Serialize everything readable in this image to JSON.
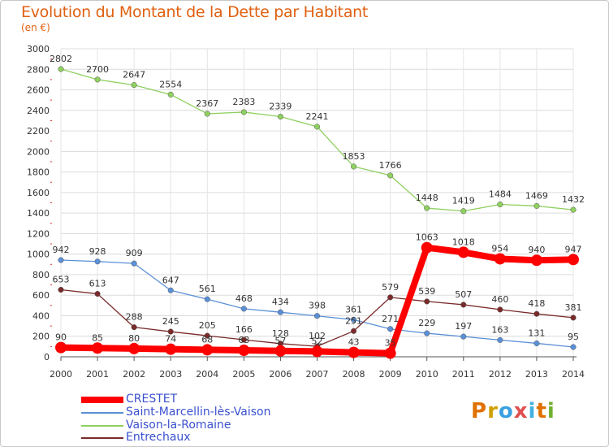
{
  "title": "Evolution du Montant de la Dette par Habitant",
  "subtitle": "(en €)",
  "logo_text": "Proxiti",
  "logo_colors": [
    "#e07000",
    "#d0a000",
    "#3aa0e0",
    "#e05050",
    "#40b0e0",
    "#e07000",
    "#70b030"
  ],
  "chart_data": {
    "type": "line",
    "title": "Evolution du Montant de la Dette par Habitant",
    "subtitle": "(en €)",
    "x": [
      "2000",
      "2001",
      "2002",
      "2003",
      "2004",
      "2005",
      "2006",
      "2007",
      "2008",
      "2009",
      "2010",
      "2011",
      "2012",
      "2013",
      "2014"
    ],
    "ylim": [
      0,
      3000
    ],
    "yticks": [
      0,
      200,
      400,
      600,
      800,
      1000,
      1200,
      1400,
      1600,
      1800,
      2000,
      2200,
      2400,
      2600,
      2800,
      3000
    ],
    "grid": true,
    "legend_position": "bottom-left",
    "series": [
      {
        "name": "CRESTET",
        "color": "#ff0000",
        "width": 8,
        "values": [
          90,
          85,
          80,
          74,
          68,
          63,
          57,
          52,
          43,
          35,
          1063,
          1018,
          954,
          940,
          947
        ],
        "labels": [
          "90",
          "85",
          "80",
          "74",
          "68",
          "63",
          "57",
          "52",
          "43",
          "35",
          "1063",
          "1018",
          "954",
          "940",
          "947"
        ]
      },
      {
        "name": "Saint-Marcellin-lès-Vaison",
        "color": "#5a90d8",
        "width": 1.3,
        "values": [
          942,
          928,
          909,
          647,
          561,
          468,
          434,
          398,
          361,
          271,
          229,
          197,
          163,
          131,
          95
        ],
        "labels": [
          "942",
          "928",
          "909",
          "647",
          "561",
          "468",
          "434",
          "398",
          "361",
          "271",
          "229",
          "197",
          "163",
          "131",
          "95"
        ]
      },
      {
        "name": "Vaison-la-Romaine",
        "color": "#8fd060",
        "width": 1.3,
        "values": [
          2802,
          2700,
          2647,
          2554,
          2367,
          2383,
          2339,
          2241,
          1853,
          1766,
          1448,
          1419,
          1484,
          1469,
          1432
        ],
        "labels": [
          "2802",
          "2700",
          "2647",
          "2554",
          "2367",
          "2383",
          "2339",
          "2241",
          "1853",
          "1766",
          "1448",
          "1419",
          "1484",
          "1469",
          "1432"
        ]
      },
      {
        "name": "Entrechaux",
        "color": "#7a2a2a",
        "width": 1.3,
        "values": [
          653,
          613,
          288,
          245,
          205,
          166,
          128,
          102,
          251,
          579,
          539,
          507,
          460,
          418,
          381
        ],
        "labels": [
          "653",
          "613",
          "288",
          "245",
          "205",
          "166",
          "128",
          "102",
          "251",
          "579",
          "539",
          "507",
          "460",
          "418",
          "381"
        ]
      }
    ]
  }
}
